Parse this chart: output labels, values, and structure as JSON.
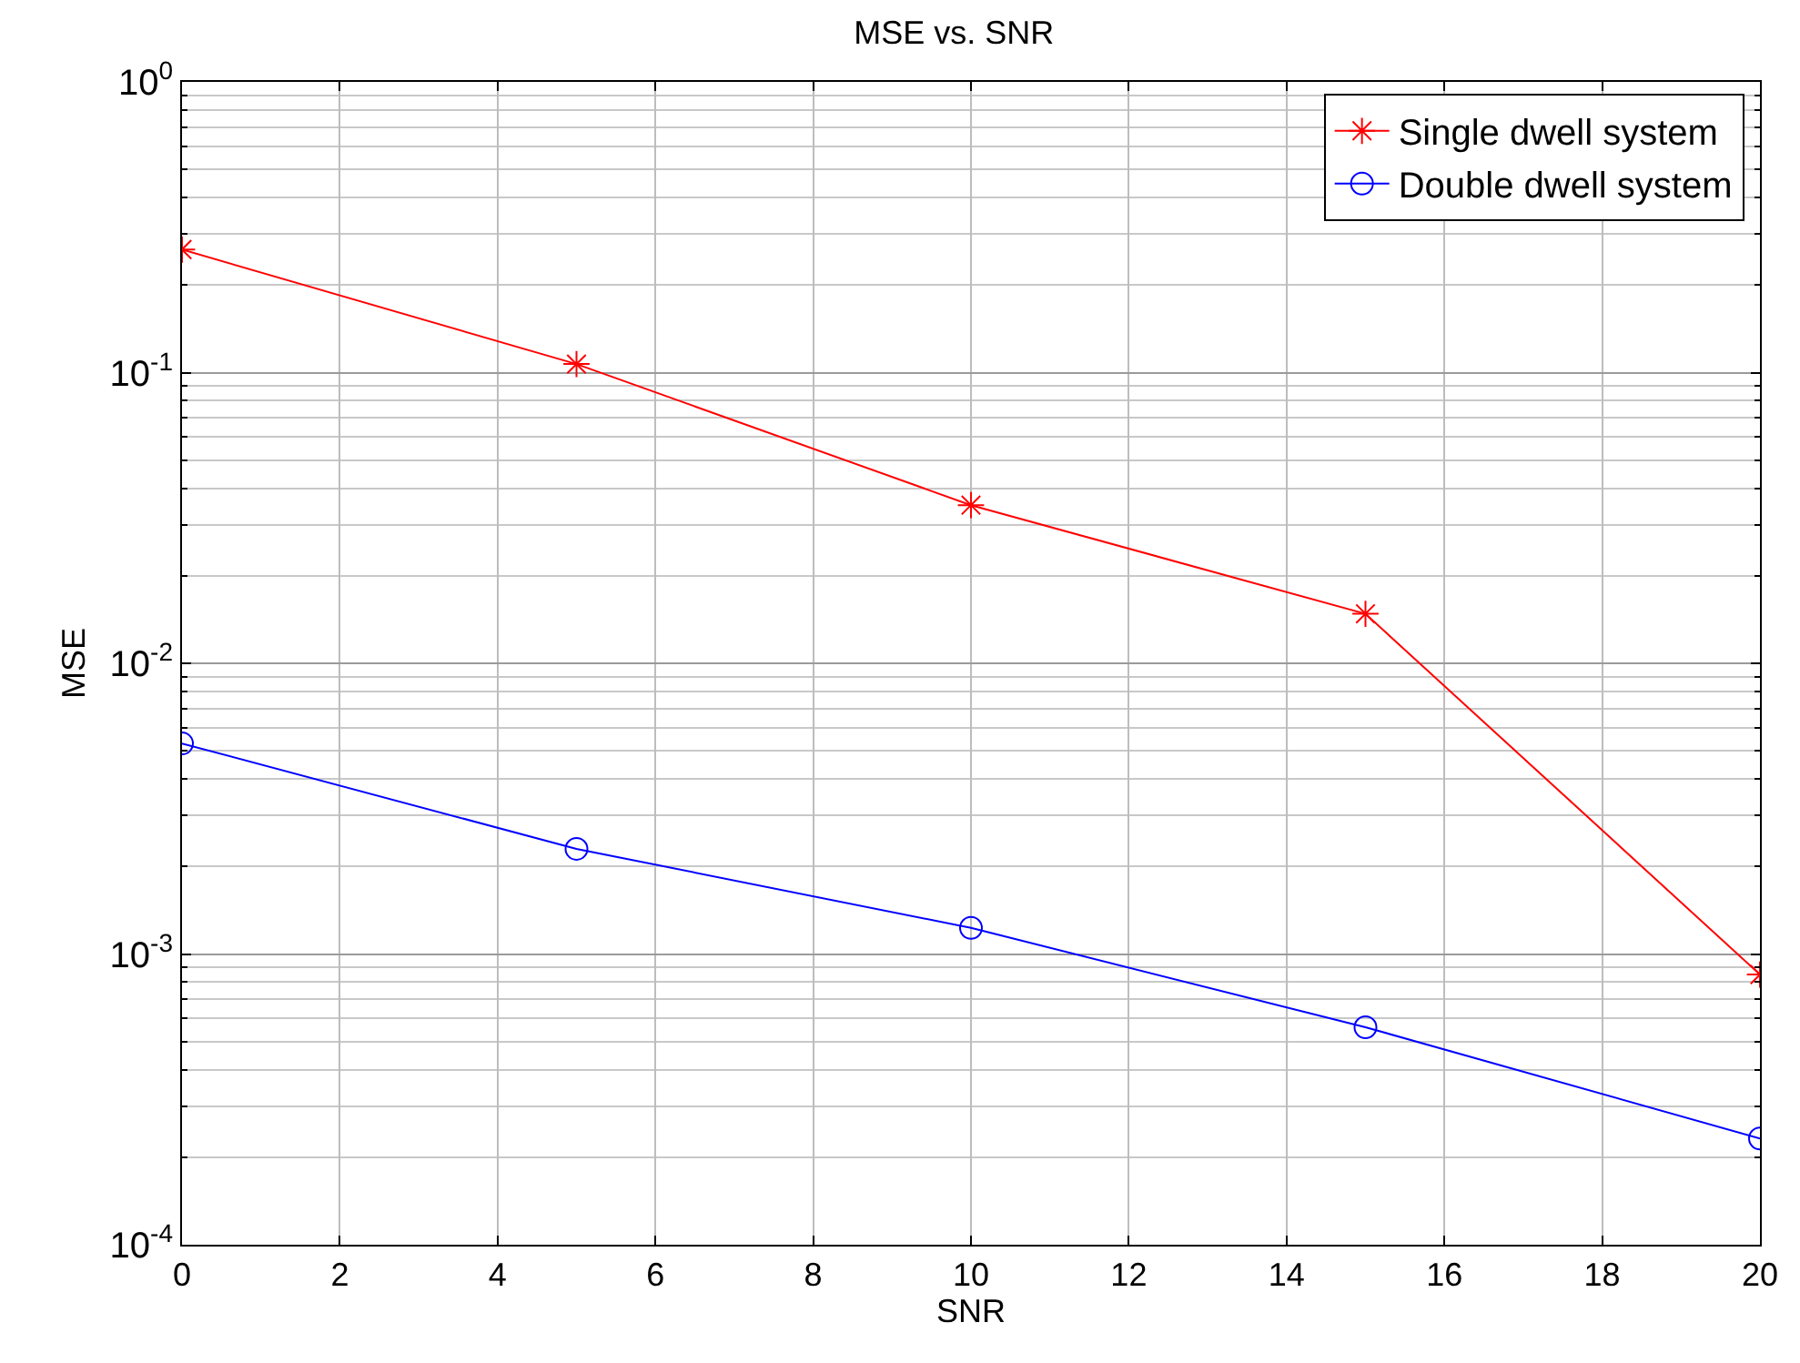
{
  "chart_data": {
    "type": "line",
    "title": "MSE vs. SNR",
    "xlabel": "SNR",
    "ylabel": "MSE",
    "x": [
      0,
      5,
      10,
      15,
      20
    ],
    "series": [
      {
        "name": "Single dwell system",
        "color": "#ff0000",
        "marker": "cross",
        "values": [
          0.265,
          0.107,
          0.035,
          0.0148,
          0.00085
        ]
      },
      {
        "name": "Double dwell system",
        "color": "#0000ff",
        "marker": "circle",
        "values": [
          0.0053,
          0.0023,
          0.00123,
          0.00056,
          0.000232
        ]
      }
    ],
    "log": "y",
    "grid": true,
    "legend": "top right",
    "xlim": [
      0,
      20
    ],
    "xticks": [
      0,
      2,
      4,
      6,
      8,
      10,
      12,
      14,
      16,
      18,
      20
    ],
    "ylim": [
      0.0001,
      1
    ],
    "yticks": [
      {
        "value": 0.0001,
        "label": "10$^{-4}$"
      },
      {
        "value": 0.001,
        "label": "10$^{-3}$"
      },
      {
        "value": 0.01,
        "label": "10$^{-2}$"
      },
      {
        "value": 0.1,
        "label": "10$^{-1}$"
      },
      {
        "value": 1,
        "label": "10$^{0}$"
      }
    ]
  }
}
